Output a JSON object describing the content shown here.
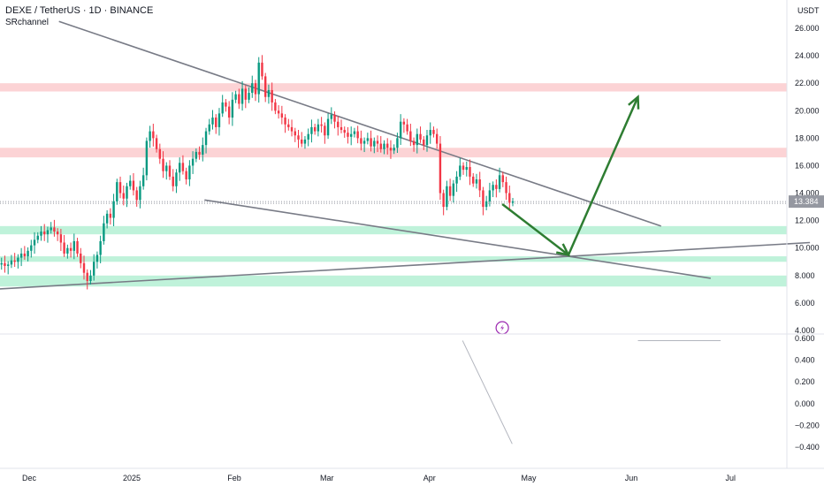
{
  "header": {
    "symbol": "DEXE / TetherUS · 1D · BINANCE",
    "indicator": "SRchannel",
    "currency": "USDT"
  },
  "chart_data": [
    {
      "type": "candlestick",
      "x_axis_labels": [
        "Dec",
        "2025",
        "Feb",
        "Mar",
        "Apr",
        "May",
        "Jun",
        "Jul"
      ],
      "y_ticks": [
        "26.000",
        "24.000",
        "22.000",
        "20.000",
        "18.000",
        "16.000",
        "14.000",
        "12.000",
        "10.000",
        "8.000",
        "6.000",
        "4.000"
      ],
      "ylim": [
        3.8,
        27.5
      ],
      "last_price": "13.384",
      "colors": {
        "up": "#089981",
        "down": "#f23645",
        "price_line": "#9598a1",
        "resistance": "#fbc8ca",
        "support": "#b4f0d4",
        "arrow": "#2e7d32",
        "trendline": "#787b86"
      },
      "resistance_zones": [
        [
          21.4,
          22.0
        ],
        [
          16.6,
          17.3
        ]
      ],
      "support_zones": [
        [
          11.0,
          11.6
        ],
        [
          9.0,
          9.4
        ],
        [
          7.2,
          8.0
        ]
      ],
      "projection": {
        "path": [
          [
            "2025-04-23",
            13.2
          ],
          [
            "2025-05-13",
            9.5
          ],
          [
            "2025-06-03",
            21.0
          ]
        ]
      },
      "trendlines": [
        {
          "from": [
            "2024-12-10",
            26.5
          ],
          "to": [
            "2025-06-10",
            11.6
          ]
        },
        {
          "from": [
            "2025-01-23",
            13.5
          ],
          "to": [
            "2025-06-25",
            7.8
          ]
        },
        {
          "from": [
            "2024-11-20",
            7.0
          ],
          "to": [
            "2025-07-25",
            10.4
          ]
        }
      ],
      "candles_close": [
        8.8,
        8.9,
        8.7,
        8.8,
        9.1,
        9.0,
        9.3,
        9.6,
        9.4,
        9.8,
        10.2,
        10.6,
        10.9,
        11.2,
        11.0,
        11.3,
        11.5,
        11.2,
        11.0,
        10.4,
        9.6,
        10.0,
        9.8,
        10.5,
        9.6,
        8.9,
        8.2,
        7.6,
        8.0,
        9.0,
        9.5,
        10.5,
        11.8,
        12.5,
        12.2,
        13.4,
        14.8,
        14.0,
        13.6,
        14.5,
        14.9,
        14.2,
        13.5,
        14.5,
        15.3,
        17.8,
        18.5,
        18.0,
        17.2,
        16.5,
        15.6,
        16.0,
        15.2,
        14.5,
        15.5,
        16.2,
        15.6,
        15.0,
        16.0,
        16.5,
        17.0,
        16.8,
        17.5,
        18.5,
        19.0,
        19.5,
        18.8,
        19.8,
        20.6,
        20.3,
        19.5,
        20.8,
        21.2,
        20.5,
        21.6,
        20.8,
        21.3,
        22.0,
        21.2,
        23.5,
        22.5,
        21.0,
        21.5,
        20.6,
        20.0,
        19.8,
        19.5,
        19.0,
        18.8,
        18.5,
        18.2,
        17.9,
        17.6,
        17.9,
        18.3,
        18.8,
        18.5,
        19.0,
        18.9,
        18.2,
        19.4,
        19.7,
        19.2,
        18.8,
        18.6,
        18.4,
        18.1,
        18.3,
        18.5,
        18.0,
        17.6,
        17.8,
        18.0,
        17.4,
        17.8,
        17.6,
        17.2,
        17.6,
        17.3,
        17.1,
        17.3,
        18.0,
        19.2,
        19.0,
        18.5,
        17.8,
        17.5,
        18.3,
        17.9,
        17.5,
        18.2,
        18.6,
        18.3,
        17.6,
        14.0,
        13.0,
        14.5,
        13.8,
        14.7,
        15.2,
        16.0,
        15.7,
        15.9,
        15.2,
        14.7,
        15.0,
        14.2,
        13.0,
        13.4,
        14.2,
        14.6,
        14.3,
        15.3,
        14.8,
        14.0,
        13.3,
        13.4
      ],
      "candles_open": [
        8.7,
        8.8,
        8.9,
        8.7,
        8.8,
        9.1,
        9.0,
        9.3,
        9.6,
        9.4,
        9.8,
        10.2,
        10.6,
        10.9,
        11.2,
        11.0,
        11.3,
        11.5,
        11.2,
        11.0,
        10.4,
        9.6,
        10.0,
        9.8,
        10.5,
        9.6,
        8.9,
        8.2,
        7.6,
        8.0,
        9.0,
        9.5,
        10.5,
        11.8,
        12.5,
        12.2,
        13.4,
        14.8,
        14.0,
        13.6,
        14.5,
        14.9,
        14.2,
        13.5,
        14.5,
        15.3,
        17.8,
        18.5,
        18.0,
        17.2,
        16.5,
        15.6,
        16.0,
        15.2,
        14.5,
        15.5,
        16.2,
        15.6,
        15.0,
        16.0,
        16.5,
        17.0,
        16.8,
        17.5,
        18.5,
        19.0,
        19.5,
        18.8,
        19.8,
        20.6,
        20.3,
        19.5,
        20.8,
        21.2,
        20.5,
        21.6,
        20.8,
        21.3,
        22.0,
        21.2,
        23.5,
        22.5,
        21.0,
        21.5,
        20.6,
        20.0,
        19.8,
        19.5,
        19.0,
        18.8,
        18.5,
        18.2,
        17.9,
        17.6,
        17.9,
        18.3,
        18.8,
        18.5,
        19.0,
        18.9,
        18.2,
        19.4,
        19.7,
        19.2,
        18.8,
        18.6,
        18.4,
        18.1,
        18.3,
        18.5,
        18.0,
        17.6,
        17.8,
        18.0,
        17.4,
        17.8,
        17.6,
        17.2,
        17.6,
        17.3,
        17.1,
        17.3,
        18.0,
        19.2,
        19.0,
        18.5,
        17.8,
        17.5,
        18.3,
        17.9,
        17.5,
        18.2,
        18.6,
        18.3,
        17.6,
        14.0,
        13.0,
        14.5,
        13.8,
        14.7,
        15.2,
        16.0,
        15.7,
        15.9,
        15.2,
        14.7,
        15.0,
        14.2,
        13.0,
        13.4,
        14.2,
        14.6,
        14.3,
        15.3,
        14.8,
        14.0,
        13.3
      ]
    },
    {
      "type": "line",
      "y_ticks": [
        "0.600",
        "0.400",
        "0.200",
        "0.000",
        "−0.200",
        "−0.400"
      ],
      "ylim": [
        -0.47,
        0.62
      ],
      "series": [
        {
          "x": [
            "2025-04-11",
            "2025-04-26"
          ],
          "values": [
            0.58,
            -0.37
          ]
        },
        {
          "x": [
            "2025-06-03",
            "2025-06-28"
          ],
          "values": [
            0.58,
            0.58
          ]
        }
      ]
    }
  ]
}
